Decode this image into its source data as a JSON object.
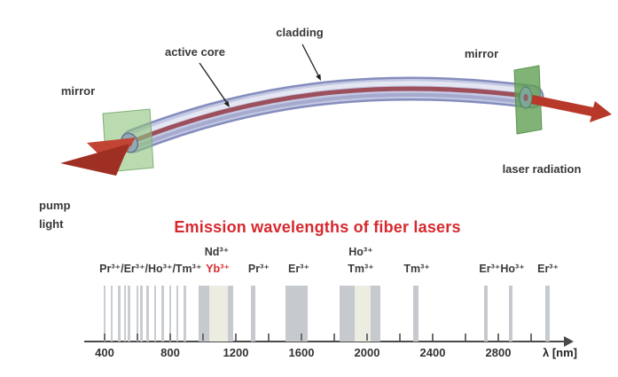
{
  "diagram": {
    "labels": {
      "mirror_left": "mirror",
      "active_core": "active core",
      "cladding": "cladding",
      "mirror_right": "mirror",
      "pump_light": "pump light",
      "laser_radiation": "laser radiation"
    },
    "colors": {
      "fiber_cladding": "#c3c8e3",
      "fiber_edge": "#858dbd",
      "fiber_core": "#9d4f5c",
      "mirror_green": "#6fae62",
      "beam_red": "#b8392a"
    }
  },
  "chart_data": {
    "type": "spectrum-bands",
    "title": "Emission wavelengths of fiber lasers",
    "xlabel": "λ [nm]",
    "xlim": [
      280,
      3250
    ],
    "grid": false,
    "axis_ticks_nm": [
      400,
      600,
      800,
      1000,
      1200,
      1400,
      1600,
      1800,
      2000,
      2200,
      2400,
      2600,
      2800,
      3000
    ],
    "axis_label_values": [
      400,
      800,
      1200,
      1600,
      2000,
      2400,
      2800
    ],
    "emission_lines_nm": [
      400,
      443,
      488,
      524,
      550,
      600,
      623,
      663,
      708,
      753,
      800,
      843,
      890
    ],
    "emission_bands": [
      {
        "from": 975,
        "to": 1040,
        "tone": "gray",
        "ion": "Nd3+/Yb3+"
      },
      {
        "from": 1040,
        "to": 1150,
        "tone": "light",
        "ion": "Yb3+ highlight"
      },
      {
        "from": 1150,
        "to": 1185,
        "tone": "gray",
        "ion": "Nd3+/Yb3+"
      },
      {
        "from": 1290,
        "to": 1318,
        "tone": "gray",
        "ion": "Pr3+"
      },
      {
        "from": 1500,
        "to": 1635,
        "tone": "gray",
        "ion": "Er3+"
      },
      {
        "from": 1830,
        "to": 1925,
        "tone": "gray",
        "ion": "Ho3+/Tm3+"
      },
      {
        "from": 1925,
        "to": 2020,
        "tone": "light",
        "ion": "Ho3+/Tm3+ highlight"
      },
      {
        "from": 2020,
        "to": 2080,
        "tone": "gray",
        "ion": "Ho3+/Tm3+"
      },
      {
        "from": 2280,
        "to": 2312,
        "tone": "gray",
        "ion": "Tm3+"
      },
      {
        "from": 2712,
        "to": 2738,
        "tone": "gray",
        "ion": "Er3+"
      },
      {
        "from": 2862,
        "to": 2888,
        "tone": "gray",
        "ion": "Ho3+"
      },
      {
        "from": 3085,
        "to": 3112,
        "tone": "gray",
        "ion": "Er3+"
      }
    ],
    "ion_labels": [
      {
        "text": "Pr³⁺/Er³⁺/Ho³⁺/Tm³⁺",
        "x_nm": 680,
        "row": "lower",
        "color": "dark"
      },
      {
        "text": "Nd³⁺",
        "x_nm": 1084,
        "row": "upper",
        "color": "dark"
      },
      {
        "text": "Yb³⁺",
        "x_nm": 1090,
        "row": "lower",
        "color": "red"
      },
      {
        "text": "Pr³⁺",
        "x_nm": 1340,
        "row": "lower",
        "color": "dark"
      },
      {
        "text": "Er³⁺",
        "x_nm": 1584,
        "row": "lower",
        "color": "dark"
      },
      {
        "text": "Ho³⁺",
        "x_nm": 1962,
        "row": "upper",
        "color": "dark"
      },
      {
        "text": "Tm³⁺",
        "x_nm": 1962,
        "row": "lower",
        "color": "dark"
      },
      {
        "text": "Tm³⁺",
        "x_nm": 2303,
        "row": "lower",
        "color": "dark"
      },
      {
        "text": "Er³⁺Ho³⁺",
        "x_nm": 2822,
        "row": "lower",
        "color": "dark"
      },
      {
        "text": "Er³⁺",
        "x_nm": 3103,
        "row": "lower",
        "color": "dark"
      }
    ],
    "colors": {
      "band_gray": "#c6c9cd",
      "band_highlight": "#ecece1",
      "title_red": "#d7282f",
      "label_dark": "#3a3a3a"
    }
  }
}
